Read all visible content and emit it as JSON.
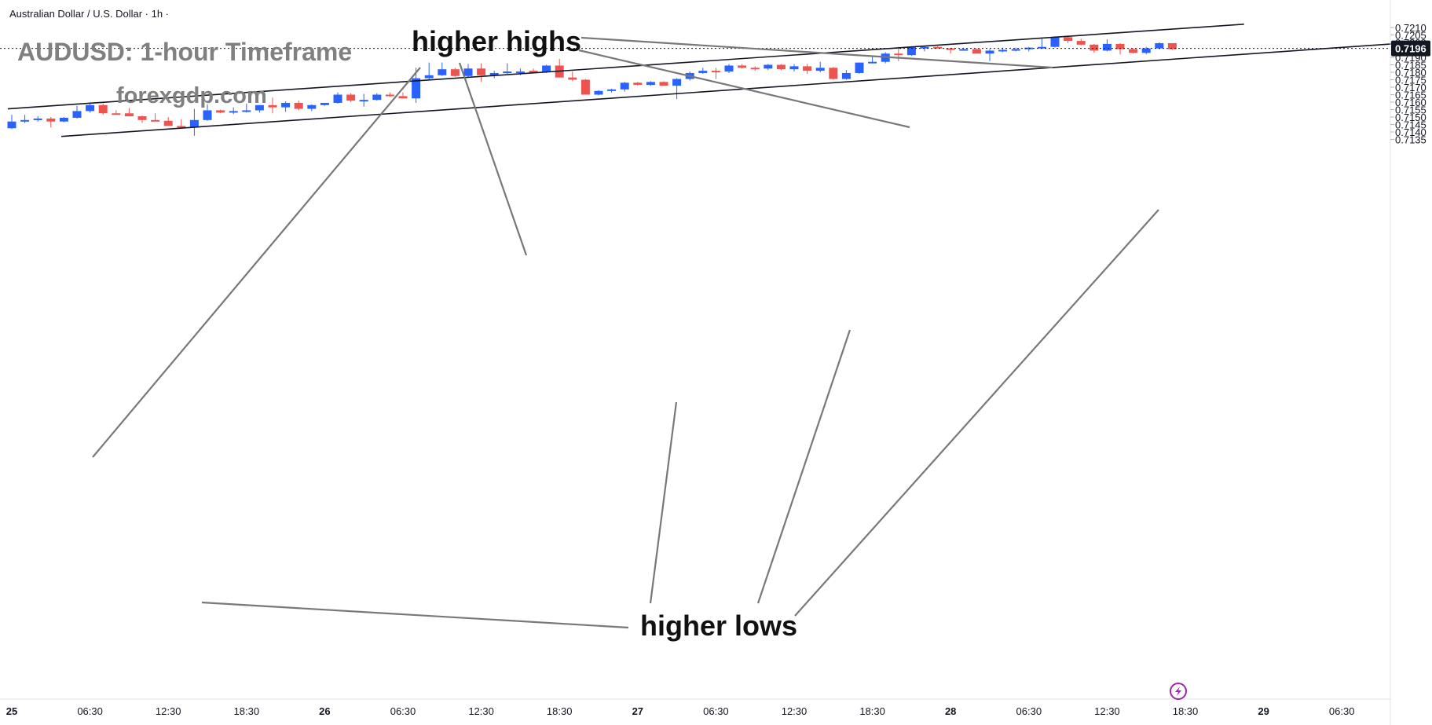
{
  "header": {
    "symbol_line": "Australian Dollar / U.S. Dollar · 1h ·"
  },
  "watermark": {
    "title": "AUDUSD: 1-hour Timeframe",
    "site": "forexgdp.com"
  },
  "annotations": {
    "higher_highs": "higher highs",
    "higher_lows": "higher lows"
  },
  "colors": {
    "up": "#2962ff",
    "down": "#ef5350",
    "line": "#131722",
    "annotation": "#787878",
    "grid": "#e0e3eb",
    "price_tag": "#131722"
  },
  "icons": {
    "flash": "lightning-bolt-icon"
  },
  "chart_data": {
    "type": "candlestick",
    "title": "",
    "ylim": [
      0.7132,
      0.7213
    ],
    "y_ticks": [
      "0.7210",
      "0.7205",
      "0.7200",
      "0.7190",
      "0.7185",
      "0.7180",
      "0.7175",
      "0.7170",
      "0.7165",
      "0.7160",
      "0.7155",
      "0.7150",
      "0.7145",
      "0.7140",
      "0.7135"
    ],
    "last_price": "0.7196",
    "x_ticks": [
      "25",
      "06:30",
      "12:30",
      "18:30",
      "26",
      "06:30",
      "12:30",
      "18:30",
      "27",
      "06:30",
      "12:30",
      "18:30",
      "28",
      "06:30",
      "12:30",
      "18:30",
      "29",
      "06:30"
    ],
    "bar_interval": "1h",
    "candles": [
      {
        "o": 0.71425,
        "h": 0.71515,
        "l": 0.7142,
        "c": 0.7147
      },
      {
        "o": 0.7147,
        "h": 0.71515,
        "l": 0.7146,
        "c": 0.7148
      },
      {
        "o": 0.7148,
        "h": 0.71505,
        "l": 0.7147,
        "c": 0.7149
      },
      {
        "o": 0.7149,
        "h": 0.715,
        "l": 0.7143,
        "c": 0.7147
      },
      {
        "o": 0.7147,
        "h": 0.715,
        "l": 0.71465,
        "c": 0.71495
      },
      {
        "o": 0.71495,
        "h": 0.71575,
        "l": 0.7149,
        "c": 0.7154
      },
      {
        "o": 0.7154,
        "h": 0.7159,
        "l": 0.7153,
        "c": 0.7158
      },
      {
        "o": 0.7158,
        "h": 0.7159,
        "l": 0.71515,
        "c": 0.71525
      },
      {
        "o": 0.71525,
        "h": 0.71545,
        "l": 0.7152,
        "c": 0.7152
      },
      {
        "o": 0.71525,
        "h": 0.7156,
        "l": 0.71505,
        "c": 0.71505
      },
      {
        "o": 0.71505,
        "h": 0.7151,
        "l": 0.7146,
        "c": 0.7148
      },
      {
        "o": 0.7148,
        "h": 0.71525,
        "l": 0.71475,
        "c": 0.71475
      },
      {
        "o": 0.71475,
        "h": 0.715,
        "l": 0.7144,
        "c": 0.7144
      },
      {
        "o": 0.7144,
        "h": 0.71485,
        "l": 0.71425,
        "c": 0.7143
      },
      {
        "o": 0.7143,
        "h": 0.71555,
        "l": 0.71375,
        "c": 0.7148
      },
      {
        "o": 0.7148,
        "h": 0.71585,
        "l": 0.71475,
        "c": 0.71545
      },
      {
        "o": 0.71545,
        "h": 0.7155,
        "l": 0.71525,
        "c": 0.7153
      },
      {
        "o": 0.7153,
        "h": 0.71565,
        "l": 0.7152,
        "c": 0.7154
      },
      {
        "o": 0.7154,
        "h": 0.7159,
        "l": 0.7153,
        "c": 0.71545
      },
      {
        "o": 0.71545,
        "h": 0.7158,
        "l": 0.7153,
        "c": 0.7158
      },
      {
        "o": 0.7158,
        "h": 0.7163,
        "l": 0.71525,
        "c": 0.71565
      },
      {
        "o": 0.71565,
        "h": 0.71605,
        "l": 0.71535,
        "c": 0.71595
      },
      {
        "o": 0.71595,
        "h": 0.7161,
        "l": 0.71545,
        "c": 0.71555
      },
      {
        "o": 0.71555,
        "h": 0.71585,
        "l": 0.7154,
        "c": 0.7158
      },
      {
        "o": 0.7158,
        "h": 0.7159,
        "l": 0.71575,
        "c": 0.71595
      },
      {
        "o": 0.71595,
        "h": 0.71665,
        "l": 0.7159,
        "c": 0.7165
      },
      {
        "o": 0.7165,
        "h": 0.7166,
        "l": 0.716,
        "c": 0.7161
      },
      {
        "o": 0.7161,
        "h": 0.71655,
        "l": 0.7157,
        "c": 0.71615
      },
      {
        "o": 0.71615,
        "h": 0.7166,
        "l": 0.7161,
        "c": 0.7165
      },
      {
        "o": 0.7165,
        "h": 0.71665,
        "l": 0.71635,
        "c": 0.7164
      },
      {
        "o": 0.7164,
        "h": 0.71665,
        "l": 0.71625,
        "c": 0.71625
      },
      {
        "o": 0.71625,
        "h": 0.7183,
        "l": 0.71595,
        "c": 0.7176
      },
      {
        "o": 0.7176,
        "h": 0.71865,
        "l": 0.71745,
        "c": 0.7178
      },
      {
        "o": 0.7178,
        "h": 0.71865,
        "l": 0.71775,
        "c": 0.7182
      },
      {
        "o": 0.7182,
        "h": 0.7183,
        "l": 0.7177,
        "c": 0.71775
      },
      {
        "o": 0.71775,
        "h": 0.71855,
        "l": 0.71765,
        "c": 0.71825
      },
      {
        "o": 0.71825,
        "h": 0.7186,
        "l": 0.71735,
        "c": 0.7178
      },
      {
        "o": 0.7178,
        "h": 0.7181,
        "l": 0.7176,
        "c": 0.71795
      },
      {
        "o": 0.71795,
        "h": 0.7186,
        "l": 0.7179,
        "c": 0.71805
      },
      {
        "o": 0.71805,
        "h": 0.71825,
        "l": 0.7178,
        "c": 0.71805
      },
      {
        "o": 0.7181,
        "h": 0.71825,
        "l": 0.718,
        "c": 0.71795
      },
      {
        "o": 0.718,
        "h": 0.7185,
        "l": 0.71795,
        "c": 0.71845
      },
      {
        "o": 0.71845,
        "h": 0.7189,
        "l": 0.71765,
        "c": 0.71765
      },
      {
        "o": 0.71765,
        "h": 0.71805,
        "l": 0.7174,
        "c": 0.7175
      },
      {
        "o": 0.7175,
        "h": 0.71755,
        "l": 0.7165,
        "c": 0.7165
      },
      {
        "o": 0.7165,
        "h": 0.7168,
        "l": 0.71645,
        "c": 0.71675
      },
      {
        "o": 0.71675,
        "h": 0.7169,
        "l": 0.71665,
        "c": 0.71685
      },
      {
        "o": 0.71685,
        "h": 0.71735,
        "l": 0.7167,
        "c": 0.7173
      },
      {
        "o": 0.7173,
        "h": 0.71735,
        "l": 0.7171,
        "c": 0.71715
      },
      {
        "o": 0.71715,
        "h": 0.7174,
        "l": 0.7171,
        "c": 0.71735
      },
      {
        "o": 0.71735,
        "h": 0.7174,
        "l": 0.7171,
        "c": 0.7171
      },
      {
        "o": 0.7171,
        "h": 0.7176,
        "l": 0.7162,
        "c": 0.71755
      },
      {
        "o": 0.71755,
        "h": 0.71805,
        "l": 0.71745,
        "c": 0.71795
      },
      {
        "o": 0.71795,
        "h": 0.7183,
        "l": 0.7179,
        "c": 0.7181
      },
      {
        "o": 0.7181,
        "h": 0.7183,
        "l": 0.71755,
        "c": 0.71805
      },
      {
        "o": 0.71805,
        "h": 0.71855,
        "l": 0.71795,
        "c": 0.71845
      },
      {
        "o": 0.71845,
        "h": 0.71855,
        "l": 0.71825,
        "c": 0.7183
      },
      {
        "o": 0.7183,
        "h": 0.7184,
        "l": 0.7181,
        "c": 0.71825
      },
      {
        "o": 0.71825,
        "h": 0.71855,
        "l": 0.71815,
        "c": 0.7185
      },
      {
        "o": 0.7185,
        "h": 0.71855,
        "l": 0.71815,
        "c": 0.7182
      },
      {
        "o": 0.7182,
        "h": 0.71855,
        "l": 0.71805,
        "c": 0.7184
      },
      {
        "o": 0.7184,
        "h": 0.71855,
        "l": 0.7179,
        "c": 0.7181
      },
      {
        "o": 0.7181,
        "h": 0.7187,
        "l": 0.718,
        "c": 0.7183
      },
      {
        "o": 0.7183,
        "h": 0.71835,
        "l": 0.7175,
        "c": 0.71755
      },
      {
        "o": 0.71755,
        "h": 0.71815,
        "l": 0.7175,
        "c": 0.71795
      },
      {
        "o": 0.71795,
        "h": 0.71865,
        "l": 0.7179,
        "c": 0.71865
      },
      {
        "o": 0.71865,
        "h": 0.71905,
        "l": 0.7186,
        "c": 0.7187
      },
      {
        "o": 0.7187,
        "h": 0.71935,
        "l": 0.7186,
        "c": 0.71925
      },
      {
        "o": 0.71925,
        "h": 0.7197,
        "l": 0.71875,
        "c": 0.71915
      },
      {
        "o": 0.71915,
        "h": 0.71975,
        "l": 0.7191,
        "c": 0.7197
      },
      {
        "o": 0.7197,
        "h": 0.71975,
        "l": 0.7194,
        "c": 0.7197
      },
      {
        "o": 0.7197,
        "h": 0.71975,
        "l": 0.7196,
        "c": 0.7196
      },
      {
        "o": 0.7196,
        "h": 0.71965,
        "l": 0.71925,
        "c": 0.7195
      },
      {
        "o": 0.7195,
        "h": 0.7196,
        "l": 0.71945,
        "c": 0.71955
      },
      {
        "o": 0.71955,
        "h": 0.7196,
        "l": 0.71925,
        "c": 0.71925
      },
      {
        "o": 0.71925,
        "h": 0.71955,
        "l": 0.71875,
        "c": 0.71945
      },
      {
        "o": 0.71945,
        "h": 0.71965,
        "l": 0.71935,
        "c": 0.7195
      },
      {
        "o": 0.7195,
        "h": 0.71965,
        "l": 0.7194,
        "c": 0.71955
      },
      {
        "o": 0.71955,
        "h": 0.7197,
        "l": 0.7194,
        "c": 0.71965
      },
      {
        "o": 0.71965,
        "h": 0.72025,
        "l": 0.7196,
        "c": 0.7197
      },
      {
        "o": 0.7197,
        "h": 0.7204,
        "l": 0.71965,
        "c": 0.72035
      },
      {
        "o": 0.72035,
        "h": 0.72045,
        "l": 0.71995,
        "c": 0.7201
      },
      {
        "o": 0.7201,
        "h": 0.72025,
        "l": 0.7198,
        "c": 0.71985
      },
      {
        "o": 0.71985,
        "h": 0.7199,
        "l": 0.7193,
        "c": 0.71945
      },
      {
        "o": 0.71945,
        "h": 0.7202,
        "l": 0.7194,
        "c": 0.7199
      },
      {
        "o": 0.7199,
        "h": 0.71995,
        "l": 0.7192,
        "c": 0.71955
      },
      {
        "o": 0.71955,
        "h": 0.7196,
        "l": 0.71925,
        "c": 0.7193
      },
      {
        "o": 0.7193,
        "h": 0.7197,
        "l": 0.7192,
        "c": 0.7196
      },
      {
        "o": 0.7196,
        "h": 0.72,
        "l": 0.71955,
        "c": 0.71995
      },
      {
        "o": 0.71995,
        "h": 0.71995,
        "l": 0.7195,
        "c": 0.71955
      }
    ],
    "trendlines": [
      {
        "name": "upper-channel",
        "from": [
          -0.3,
          0.71555
        ],
        "to": [
          94.5,
          0.72122
        ]
      },
      {
        "name": "lower-channel",
        "from": [
          3.8,
          0.7137
        ],
        "to": [
          107.2,
          0.71998
        ]
      }
    ]
  }
}
